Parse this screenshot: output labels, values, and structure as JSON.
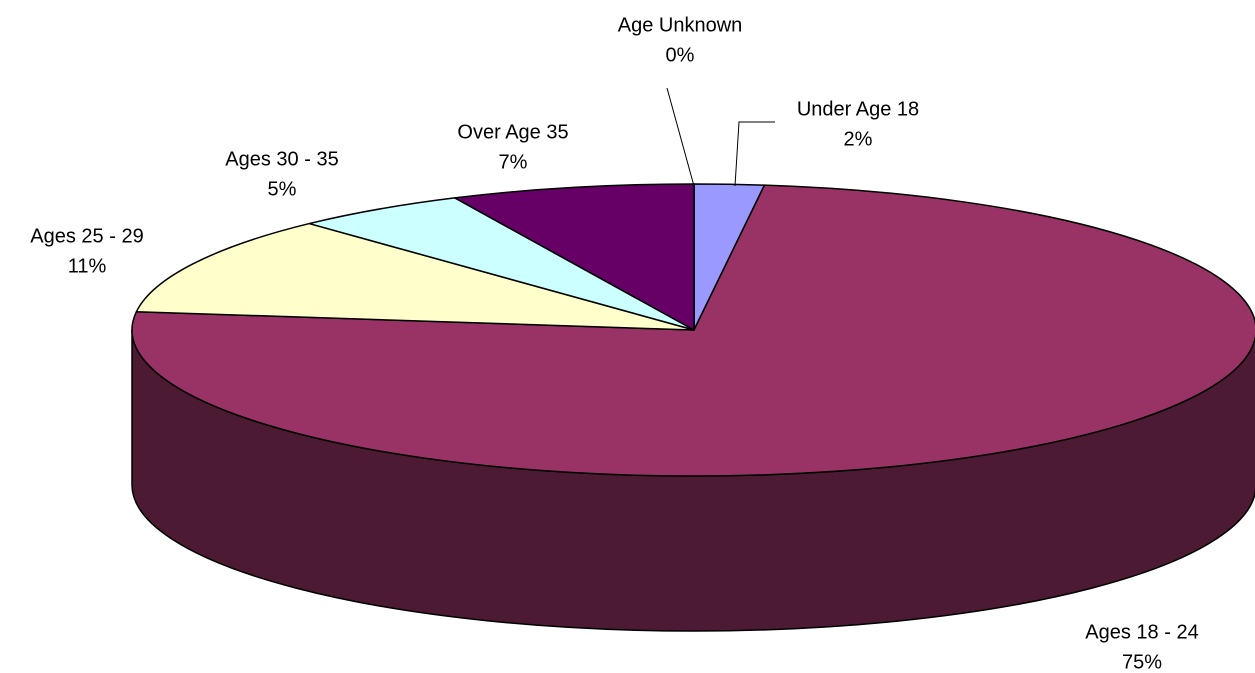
{
  "chart_data": {
    "type": "pie",
    "categories": [
      "Under Age 18",
      "Ages 18 - 24",
      "Ages 25 - 29",
      "Ages 30 - 35",
      "Over Age 35",
      "Age Unknown"
    ],
    "values": [
      2,
      75,
      11,
      5,
      7,
      0
    ],
    "value_labels": [
      "2%",
      "75%",
      "11%",
      "5%",
      "7%",
      "0%"
    ],
    "colors": [
      "#9999ff",
      "#993366",
      "#ffffcc",
      "#ccffff",
      "#660066",
      "#ff8080"
    ]
  }
}
